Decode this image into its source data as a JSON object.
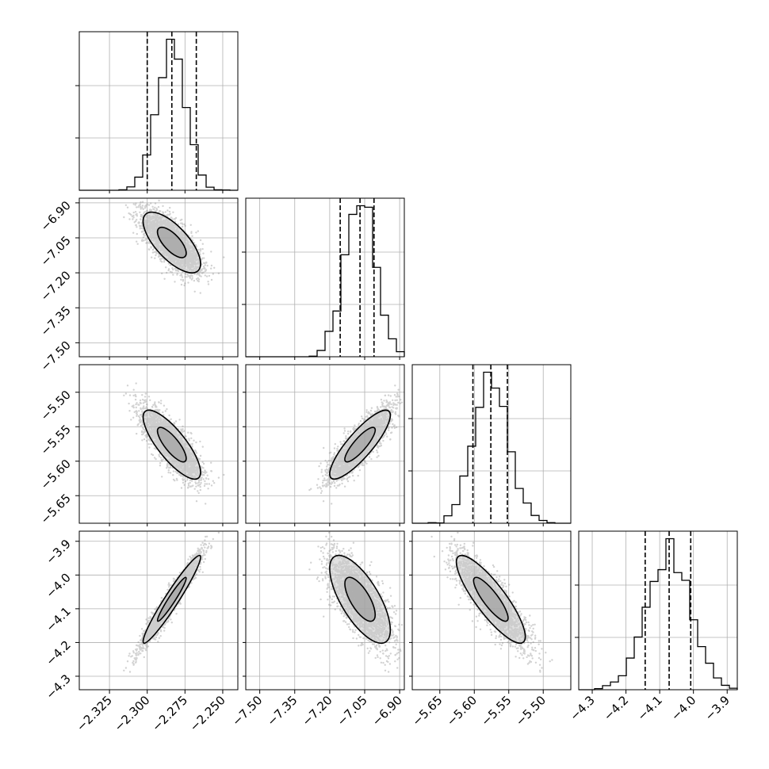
{
  "chart_data": {
    "type": "corner",
    "parameters": [
      {
        "range": [
          -2.345,
          -2.24
        ],
        "ticks": [
          -2.325,
          -2.3,
          -2.275,
          -2.25
        ],
        "tick_labels": [
          "−2.325",
          "−2.300",
          "−2.275",
          "−2.250"
        ],
        "quantiles": [
          -2.3,
          -2.2837,
          -2.2675
        ],
        "median": -2.2837,
        "sigma": 0.0095
      },
      {
        "range": [
          -7.56,
          -6.88
        ],
        "ticks": [
          -7.5,
          -7.35,
          -7.2,
          -7.05,
          -6.9
        ],
        "tick_labels": [
          "−7.50",
          "−7.35",
          "−7.20",
          "−7.05",
          "−6.90"
        ],
        "quantiles": [
          -7.155,
          -7.07,
          -7.01
        ],
        "median": -7.07,
        "sigma": 0.065
      },
      {
        "range": [
          -5.69,
          -5.46
        ],
        "ticks": [
          -5.65,
          -5.6,
          -5.55,
          -5.5
        ],
        "tick_labels": [
          "−5.65",
          "−5.60",
          "−5.55",
          "−5.50"
        ],
        "quantiles": [
          -5.602,
          -5.576,
          -5.552
        ],
        "median": -5.576,
        "sigma": 0.025
      },
      {
        "range": [
          -4.34,
          -3.87
        ],
        "ticks": [
          -4.3,
          -4.2,
          -4.1,
          -4.0,
          -3.9
        ],
        "tick_labels": [
          "−4.3",
          "−4.2",
          "−4.1",
          "−4.0",
          "−3.9"
        ],
        "quantiles": [
          -4.143,
          -4.072,
          -4.008
        ],
        "median": -4.072,
        "sigma": 0.065
      }
    ],
    "correlations": [
      [
        1,
        -0.7,
        -0.8,
        0.96
      ],
      [
        -0.7,
        1,
        0.85,
        -0.7
      ],
      [
        -0.8,
        0.85,
        1,
        -0.85
      ],
      [
        0.96,
        -0.7,
        -0.85,
        1
      ]
    ],
    "histogram_bins": 20,
    "grid": true,
    "colors": {
      "line": "#000000",
      "points": "#808080",
      "grid": "#b0b0b0",
      "contour_fill": "#c8c8c8"
    }
  }
}
